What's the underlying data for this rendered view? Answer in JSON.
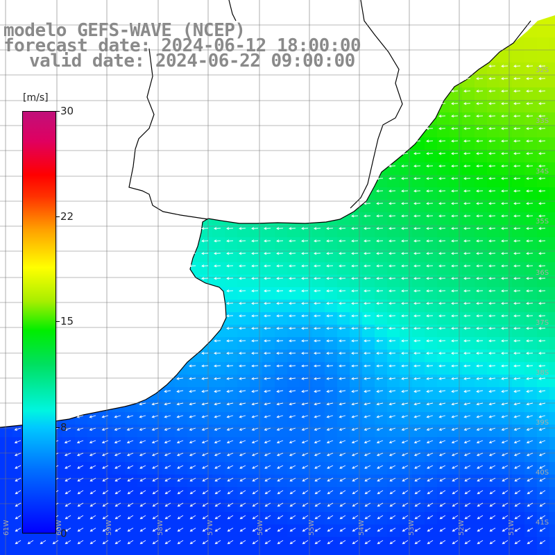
{
  "title": {
    "line1": "modelo GEFS-WAVE (NCEP)",
    "line2": "forecast date: 2024-06-12 18:00:00",
    "line3": "valid date: 2024-06-22 09:00:00"
  },
  "colorbar": {
    "unit": "[m/s]",
    "ticks": [
      "30",
      "22",
      "15",
      "8",
      "0"
    ],
    "tick_values": [
      30,
      22,
      15,
      8,
      0
    ],
    "colors": [
      "#0000ff",
      "#00c8ff",
      "#00ffe0",
      "#00ee00",
      "#ffff00",
      "#ff0000",
      "#c0107a"
    ]
  },
  "lat_labels": [
    "32S",
    "33S",
    "34S",
    "35S",
    "36S",
    "37S",
    "38S",
    "39S",
    "40S",
    "41S"
  ],
  "lon_labels": [
    "61W",
    "60W",
    "59W",
    "58W",
    "57W",
    "56W",
    "55W",
    "54W",
    "53W",
    "52W",
    "51W"
  ],
  "map": {
    "land_color": "#ffffff",
    "grid_color": "#777777",
    "coast_color": "#000000",
    "arrow_color": "#ffffff"
  }
}
